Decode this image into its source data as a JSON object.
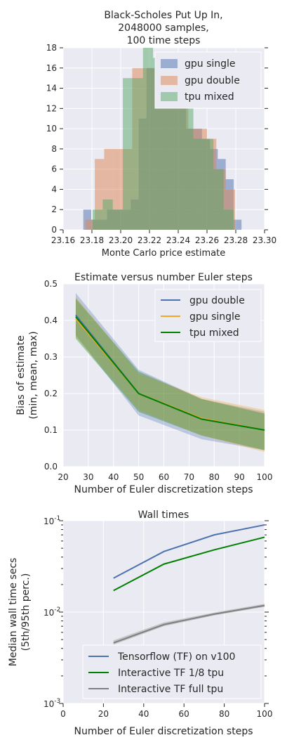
{
  "chart_data": [
    {
      "type": "histogram",
      "title_lines": [
        "Black-Scholes Put Up In,",
        "2048000 samples,",
        "100 time steps"
      ],
      "xlabel": "Monte Carlo price estimate",
      "ylabel": "",
      "xlim": [
        23.16,
        23.3
      ],
      "ylim": [
        0,
        18
      ],
      "xticks": [
        23.16,
        23.18,
        23.2,
        23.22,
        23.24,
        23.26,
        23.28,
        23.3
      ],
      "xtick_labels": [
        "23.16",
        "23.18",
        "23.20",
        "23.22",
        "23.24",
        "23.26",
        "23.28",
        "23.30"
      ],
      "yticks": [
        0,
        2,
        4,
        6,
        8,
        10,
        12,
        14,
        16,
        18
      ],
      "ytick_labels": [
        "0",
        "2",
        "4",
        "6",
        "8",
        "10",
        "12",
        "14",
        "16",
        "18"
      ],
      "grid": true,
      "legend_position": "top-right",
      "series": [
        {
          "name": "gpu single",
          "color": "#4c72b0",
          "bin_edges": [
            23.174,
            23.1795,
            23.185,
            23.1905,
            23.196,
            23.2015,
            23.207,
            23.2125,
            23.218,
            23.2235,
            23.229,
            23.2345,
            23.24,
            23.2455,
            23.251,
            23.2565,
            23.262,
            23.2675,
            23.273,
            23.2785,
            23.284
          ],
          "counts": [
            2,
            1,
            1,
            2,
            2,
            2,
            3,
            11,
            16,
            17,
            17,
            16,
            14,
            10,
            10,
            9,
            8,
            7,
            5,
            1
          ]
        },
        {
          "name": "gpu double",
          "color": "#dd8452",
          "bin_edges": [
            23.1755,
            23.182,
            23.1885,
            23.195,
            23.2015,
            23.208,
            23.2145,
            23.221,
            23.2275,
            23.234,
            23.2405,
            23.247,
            23.2535,
            23.26,
            23.2665,
            23.273,
            23.2795
          ],
          "counts": [
            1,
            7,
            8,
            8,
            8,
            16,
            16,
            16,
            16,
            14,
            14,
            10,
            10,
            9,
            6,
            4
          ]
        },
        {
          "name": "tpu mixed",
          "color": "#55a868",
          "bin_edges": [
            23.1805,
            23.1875,
            23.1945,
            23.2015,
            23.2085,
            23.2155,
            23.2225,
            23.2295,
            23.2365,
            23.2435,
            23.2505,
            23.2575,
            23.2645,
            23.2715,
            23.2785
          ],
          "counts": [
            2,
            3,
            2,
            15,
            15,
            18,
            17,
            16,
            16,
            15,
            9,
            9,
            6,
            2
          ]
        }
      ]
    },
    {
      "type": "line",
      "title": "Estimate versus number Euler steps",
      "xlabel": "Number of Euler discretization steps",
      "ylabel_lines": [
        "Bias of estimate",
        "(min, mean, max)"
      ],
      "xlim": [
        20,
        100
      ],
      "ylim": [
        0.0,
        0.5
      ],
      "xticks": [
        20,
        30,
        40,
        50,
        60,
        70,
        80,
        90,
        100
      ],
      "xtick_labels": [
        "20",
        "30",
        "40",
        "50",
        "60",
        "70",
        "80",
        "90",
        "100"
      ],
      "yticks": [
        0.0,
        0.1,
        0.2,
        0.3,
        0.4,
        0.5
      ],
      "ytick_labels": [
        "0.0",
        "0.1",
        "0.2",
        "0.3",
        "0.4",
        "0.5"
      ],
      "grid": true,
      "legend_position": "top-right",
      "x": [
        25,
        50,
        75,
        100
      ],
      "series": [
        {
          "name": "gpu double",
          "color": "#4c72b0",
          "mean": [
            0.415,
            0.2,
            0.13,
            0.1
          ],
          "min": [
            0.36,
            0.14,
            0.075,
            0.045
          ],
          "max": [
            0.475,
            0.265,
            0.185,
            0.15
          ]
        },
        {
          "name": "gpu single",
          "color": "#f5a623",
          "mean": [
            0.405,
            0.2,
            0.132,
            0.1
          ],
          "min": [
            0.355,
            0.155,
            0.085,
            0.04
          ],
          "max": [
            0.465,
            0.255,
            0.19,
            0.155
          ]
        },
        {
          "name": "tpu mixed",
          "color": "#008000",
          "mean": [
            0.41,
            0.2,
            0.13,
            0.1
          ],
          "min": [
            0.35,
            0.15,
            0.085,
            0.045
          ],
          "max": [
            0.46,
            0.26,
            0.185,
            0.145
          ]
        }
      ]
    },
    {
      "type": "line",
      "title": "Wall times",
      "xlabel": "Number of Euler discretization steps",
      "ylabel_lines": [
        "Median wall time secs",
        "(5th/95th perc.)"
      ],
      "scale_y": "log",
      "xlim": [
        0,
        100
      ],
      "ylim": [
        0.001,
        0.1
      ],
      "xticks": [
        0,
        20,
        40,
        60,
        80,
        100
      ],
      "xtick_labels": [
        "0",
        "20",
        "40",
        "60",
        "80",
        "100"
      ],
      "ytick_decades": [
        {
          "value": 0.1,
          "base": "10",
          "exp": "-1"
        },
        {
          "value": 0.01,
          "base": "10",
          "exp": "-2"
        },
        {
          "value": 0.001,
          "base": "10",
          "exp": "-3"
        }
      ],
      "grid": true,
      "legend_position": "bottom-right",
      "x": [
        25,
        50,
        75,
        100
      ],
      "series": [
        {
          "name": "Tensorflow (TF) on v100",
          "color": "#4c72b0",
          "values": [
            0.0235,
            0.046,
            0.07,
            0.09
          ]
        },
        {
          "name": "Interactive TF 1/8 tpu",
          "color": "#008000",
          "values": [
            0.0172,
            0.0335,
            0.048,
            0.066
          ]
        },
        {
          "name": "Interactive TF full tpu",
          "color": "#7f7f7f",
          "values": [
            0.0046,
            0.0073,
            0.0095,
            0.0118
          ],
          "low": [
            0.0044,
            0.007,
            0.0092,
            0.0114
          ],
          "high": [
            0.0049,
            0.0077,
            0.0099,
            0.0123
          ]
        }
      ]
    }
  ]
}
